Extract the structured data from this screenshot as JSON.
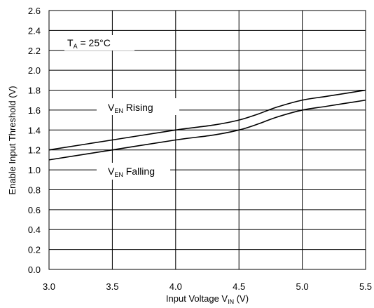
{
  "chart_data": {
    "type": "line",
    "xlabel": {
      "main": "Input Voltage V",
      "sub": "IN",
      "unit": " (V)"
    },
    "ylabel": "Enable Input Threshold  (V)",
    "xlim": [
      3.0,
      5.5
    ],
    "ylim": [
      0.0,
      2.6
    ],
    "xticks": [
      "3.0",
      "3.5",
      "4.0",
      "4.5",
      "5.0",
      "5.5"
    ],
    "yticks": [
      "0.0",
      "0.2",
      "0.4",
      "0.6",
      "0.8",
      "1.0",
      "1.2",
      "1.4",
      "1.6",
      "1.8",
      "2.0",
      "2.2",
      "2.4",
      "2.6"
    ],
    "grid": true,
    "legend": "none",
    "series": [
      {
        "name": "V_EN Rising",
        "x": [
          3.0,
          3.5,
          4.0,
          4.3,
          4.5,
          4.65,
          4.8,
          5.0,
          5.2,
          5.5
        ],
        "y": [
          1.2,
          1.3,
          1.4,
          1.45,
          1.5,
          1.56,
          1.63,
          1.7,
          1.74,
          1.8
        ]
      },
      {
        "name": "V_EN Falling",
        "x": [
          3.0,
          3.5,
          4.0,
          4.3,
          4.5,
          4.65,
          4.8,
          5.0,
          5.2,
          5.5
        ],
        "y": [
          1.1,
          1.2,
          1.3,
          1.35,
          1.4,
          1.46,
          1.53,
          1.6,
          1.64,
          1.7
        ]
      }
    ],
    "annotations": {
      "temp": {
        "pre": "T",
        "sub": "A",
        "post": " = 25°C"
      },
      "rising": {
        "pre": "V",
        "sub": "EN",
        "post": "  Rising"
      },
      "falling": {
        "pre": "V",
        "sub": "EN",
        "post": " Falling"
      }
    },
    "colors": {
      "line": "#000000",
      "grid": "#000000",
      "background": "#ffffff"
    }
  }
}
